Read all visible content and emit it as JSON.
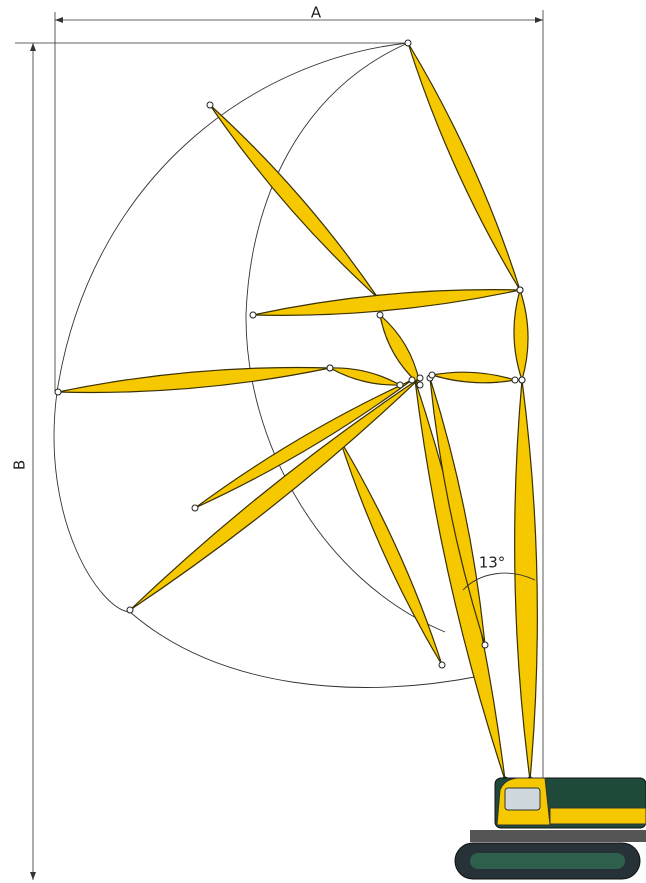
{
  "dimensions": {
    "width_label": "A",
    "height_label": "B"
  },
  "angle_label": "13°"
}
